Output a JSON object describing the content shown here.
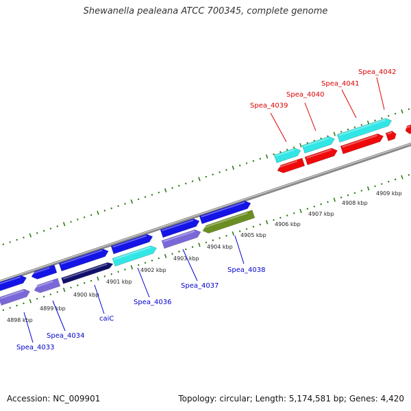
{
  "title": "Shewanella pealeana ATCC 700345, complete genome",
  "footer": {
    "accession": "Accession: NC_009901",
    "summary": "Topology: circular; Length: 5,174,581 bp; Genes: 4,420"
  },
  "colors": {
    "backbone": "#888888",
    "tick": "#2d7a12",
    "forward_gene": "#1414e6",
    "reverse_gene": "#7b68d8",
    "cyan_gene": "#33e6e6",
    "red_gene": "#ee0a0a",
    "olive_gene": "#6b8e23",
    "dark_gene": "#10106a",
    "label_blue": "#0000cc",
    "label_red": "#dd0000"
  },
  "kbp_labels": [
    "4898 kbp",
    "4899 kbp",
    "4900 kbp",
    "4901 kbp",
    "4902 kbp",
    "4903 kbp",
    "4904 kbp",
    "4905 kbp",
    "4906 kbp",
    "4907 kbp",
    "4908 kbp",
    "4909 kbp"
  ],
  "gene_labels": [
    {
      "text": "Spea_4033",
      "color": "blue"
    },
    {
      "text": "Spea_4034",
      "color": "blue"
    },
    {
      "text": "caiC",
      "color": "blue"
    },
    {
      "text": "Spea_4036",
      "color": "blue"
    },
    {
      "text": "Spea_4037",
      "color": "blue"
    },
    {
      "text": "Spea_4038",
      "color": "blue"
    },
    {
      "text": "Spea_4039",
      "color": "red"
    },
    {
      "text": "Spea_4040",
      "color": "red"
    },
    {
      "text": "Spea_4041",
      "color": "red"
    },
    {
      "text": "Spea_4042",
      "color": "red"
    }
  ]
}
